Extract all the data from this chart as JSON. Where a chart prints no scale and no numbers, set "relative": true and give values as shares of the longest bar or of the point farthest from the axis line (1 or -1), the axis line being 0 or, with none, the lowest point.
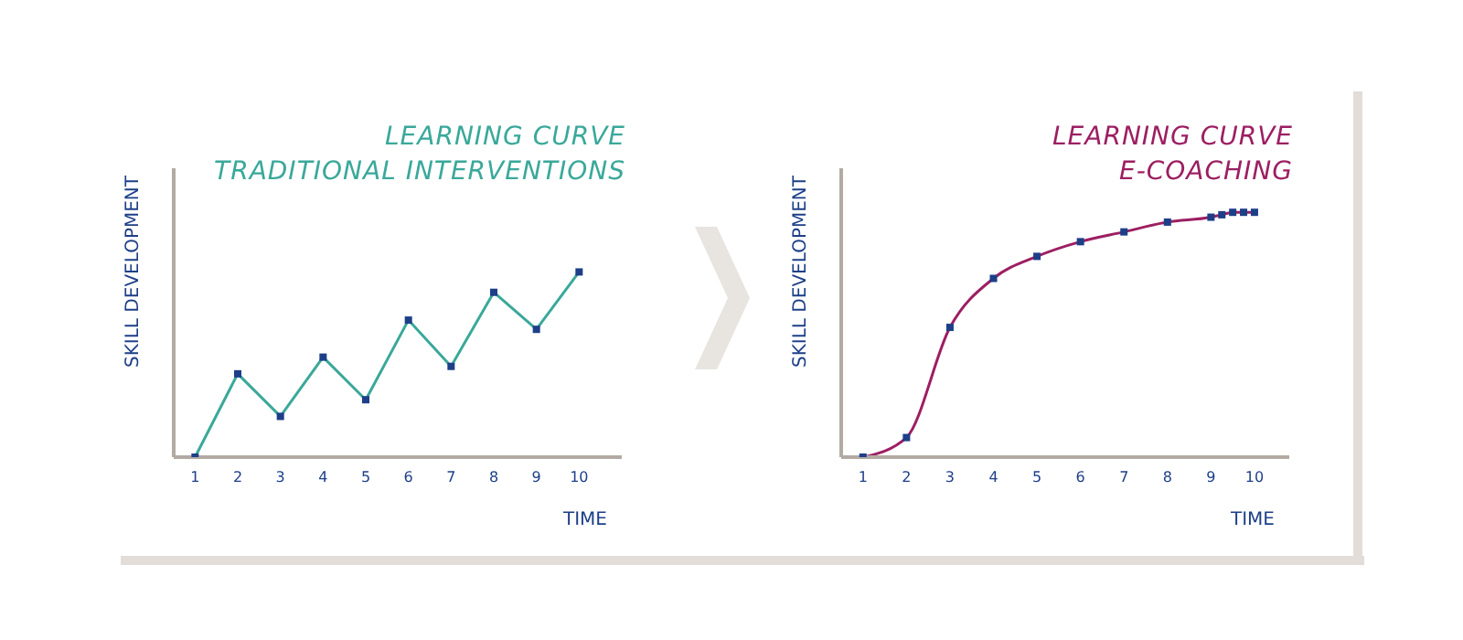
{
  "chart_data": [
    {
      "type": "line",
      "title": "LEARNING CURVE",
      "subtitle": "TRADITIONAL INTERVENTIONS",
      "xlabel": "TIME",
      "ylabel": "SKILL DEVELOPMENT",
      "relative": true,
      "marker": "square",
      "line_style": "solid",
      "x": [
        1,
        2,
        3,
        4,
        5,
        6,
        7,
        8,
        9,
        10
      ],
      "xlim": [
        0.5,
        11
      ],
      "xticks": [
        1,
        2,
        3,
        4,
        5,
        6,
        7,
        8,
        9,
        10
      ],
      "series": [
        {
          "color": "#3aa89a",
          "values": [
            0,
            0.45,
            0.22,
            0.54,
            0.31,
            0.74,
            0.49,
            0.89,
            0.69,
            1
          ]
        }
      ]
    },
    {
      "type": "line",
      "title": "LEARNING CURVE",
      "subtitle": "E-COACHING",
      "xlabel": "TIME",
      "ylabel": "SKILL DEVELOPMENT",
      "relative": true,
      "marker": "square",
      "line_style": "solid",
      "x": [
        1,
        2,
        3,
        4,
        5,
        6,
        7,
        8,
        9,
        9.25,
        9.5,
        9.75,
        10
      ],
      "xlim": [
        0.5,
        10.8
      ],
      "xticks": [
        1,
        2,
        3,
        4,
        5,
        6,
        7,
        8,
        9,
        10
      ],
      "series": [
        {
          "color": "#9c1f62",
          "values": [
            0,
            0.08,
            0.53,
            0.73,
            0.82,
            0.88,
            0.92,
            0.96,
            0.98,
            0.99,
            1,
            1,
            1
          ]
        }
      ]
    }
  ]
}
